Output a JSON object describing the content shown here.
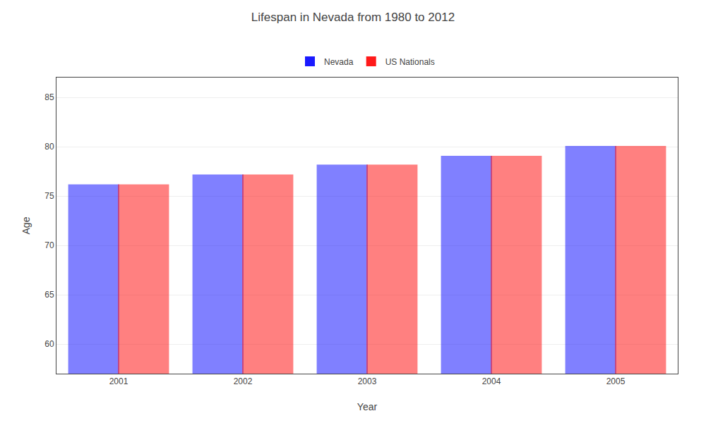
{
  "chart_data": {
    "type": "bar",
    "title": "Lifespan in Nevada from 1980 to 2012",
    "x_label": "Year",
    "y_label": "Age",
    "categories": [
      "2001",
      "2002",
      "2003",
      "2004",
      "2005"
    ],
    "series": [
      {
        "name": "Nevada",
        "color": "#1a1aff",
        "values": [
          76.1,
          77.1,
          78.1,
          79.0,
          80.0
        ]
      },
      {
        "name": "US Nationals",
        "color": "#ff1a1a",
        "values": [
          76.1,
          77.1,
          78.1,
          79.0,
          80.0
        ]
      }
    ],
    "ylim": [
      57,
      87
    ],
    "yticks": [
      60,
      65,
      70,
      75,
      80,
      85
    ],
    "grid": true,
    "legend": "top"
  }
}
